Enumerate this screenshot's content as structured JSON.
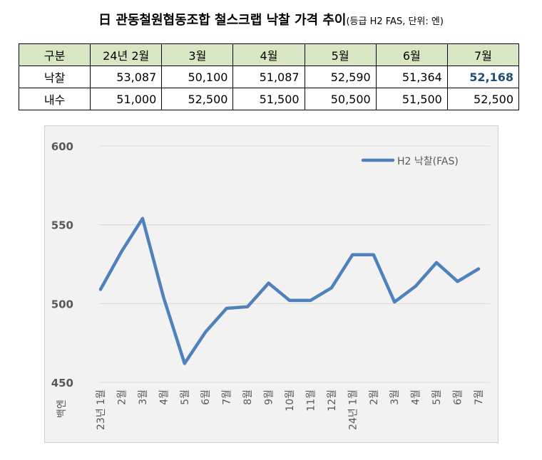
{
  "title": {
    "main": "日 관동철원협동조합 철스크랩 낙찰 가격 추이",
    "sub": "(등급 H2 FAS, 단위: 엔)"
  },
  "table": {
    "corner": "구분",
    "columns": [
      "24년 2월",
      "3월",
      "4월",
      "5월",
      "6월",
      "7월"
    ],
    "rows": [
      {
        "label": "낙찰",
        "values": [
          "53,087",
          "50,100",
          "51,087",
          "52,590",
          "51,364",
          "52,168"
        ]
      },
      {
        "label": "내수",
        "values": [
          "51,000",
          "52,500",
          "51,500",
          "50,500",
          "51,500",
          "52,500"
        ]
      }
    ],
    "highlight_color": "#1f4e79"
  },
  "chart_data": {
    "type": "line",
    "xlabel": "",
    "ylabel": "백엔",
    "ylim": [
      450,
      600
    ],
    "yticks": [
      450,
      500,
      550,
      600
    ],
    "grid": true,
    "legend_position": "top-right",
    "categories": [
      "23년 1월",
      "2월",
      "3월",
      "4월",
      "5월",
      "6월",
      "7월",
      "8월",
      "9월",
      "10월",
      "11월",
      "12월",
      "24년 1월",
      "2월",
      "3월",
      "4월",
      "5월",
      "6월",
      "7월"
    ],
    "series": [
      {
        "name": "H2 낙찰(FAS)",
        "color": "#4f81bd",
        "values": [
          509,
          533,
          554,
          504,
          462,
          482,
          497,
          498,
          513,
          502,
          502,
          510,
          531,
          531,
          501,
          511,
          526,
          514,
          522
        ]
      }
    ],
    "background": "#f2f2f2",
    "grid_color": "#d9d9d9",
    "tick_label_color": "#595959"
  }
}
